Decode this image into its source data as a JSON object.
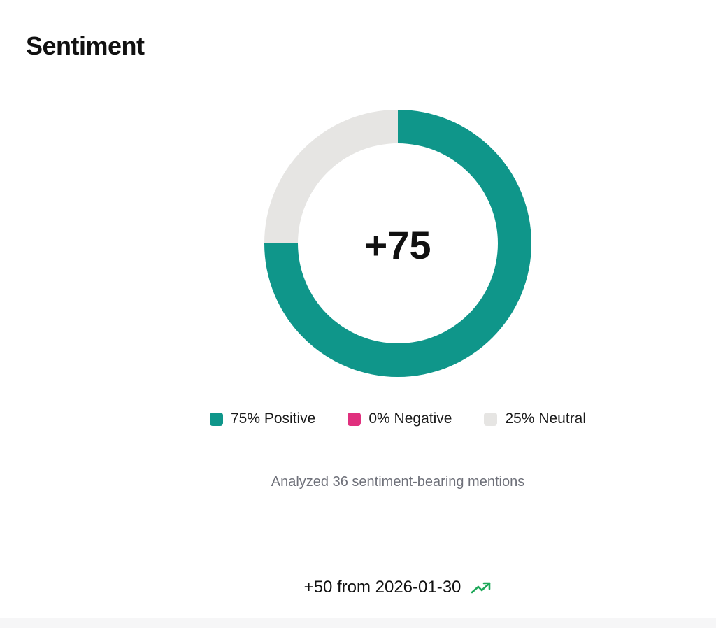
{
  "title": "Sentiment",
  "chart_data": {
    "type": "pie",
    "style": "donut",
    "center_value": "+75",
    "slices": [
      {
        "name": "Positive",
        "value": 75,
        "label": "75% Positive",
        "color": "#0f968a"
      },
      {
        "name": "Negative",
        "value": 0,
        "label": "0% Negative",
        "color": "#e0307e"
      },
      {
        "name": "Neutral",
        "value": 25,
        "label": "25% Neutral",
        "color": "#e6e5e3"
      }
    ],
    "legend_placement": "bottom"
  },
  "summary": "Analyzed 36 sentiment-bearing mentions",
  "trend": {
    "text": "+50 from 2026-01-30",
    "icon": "trending-up-icon",
    "color": "#1fa85a"
  }
}
